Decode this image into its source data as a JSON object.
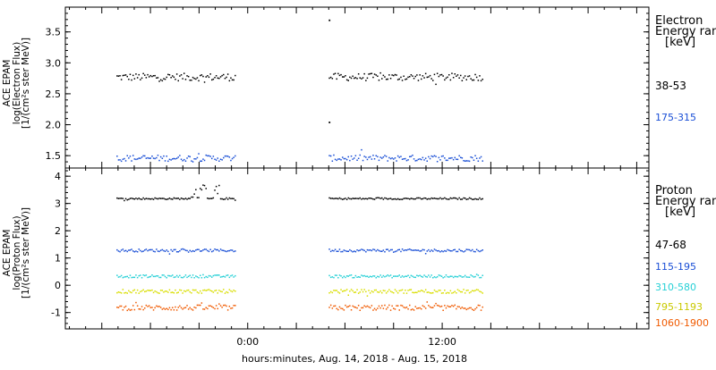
{
  "chart_data": [
    {
      "type": "scatter",
      "panel": "electron",
      "ylabel": [
        "ACE EPAM",
        "log(Electron Flux)",
        "[1/(cm²s ster MeV)]"
      ],
      "yticks": [
        "1.5",
        "2.0",
        "2.5",
        "3.0",
        "3.5"
      ],
      "ylim": [
        1.3,
        3.9
      ],
      "xlim": [
        -11.25,
        24.75
      ],
      "gaps_hours": [
        [
          -0.75,
          5.0
        ],
        [
          14.5,
          24.75
        ]
      ],
      "legend_title": [
        "Electron",
        "Energy ran",
        "[keV]"
      ],
      "series": [
        {
          "name": "38-53",
          "color": "#000000",
          "mean": 2.78,
          "spread": 0.06,
          "notes": "outliers near 05:00 at 3.7 and 2.05"
        },
        {
          "name": "175-315",
          "color": "#1a4fd6",
          "mean": 1.47,
          "spread": 0.05
        }
      ]
    },
    {
      "type": "scatter",
      "panel": "proton",
      "ylabel": [
        "ACE EPAM",
        "log(Proton Flux)",
        "[1/(cm²s ster MeV)]"
      ],
      "yticks": [
        "-1",
        "0",
        "1",
        "2",
        "3",
        "4"
      ],
      "ylim": [
        -1.6,
        4.3
      ],
      "xlim": [
        -11.25,
        24.75
      ],
      "gaps_hours": [
        [
          -0.75,
          5.0
        ],
        [
          14.5,
          24.75
        ]
      ],
      "legend_title": [
        "Proton",
        "Energy ran",
        "[keV]"
      ],
      "series": [
        {
          "name": "47-68",
          "color": "#000000",
          "mean": 3.2,
          "spread": 0.03,
          "notes": "bump to ~3.7 near -3:30 and -2:20"
        },
        {
          "name": "115-195",
          "color": "#1a4fd6",
          "mean": 1.3,
          "spread": 0.05
        },
        {
          "name": "310-580",
          "color": "#26d0d6",
          "mean": 0.35,
          "spread": 0.05
        },
        {
          "name": "795-1193",
          "color": "#d9de00",
          "mean": -0.2,
          "spread": 0.07
        },
        {
          "name": "1060-1900",
          "color": "#f05a00",
          "mean": -0.8,
          "spread": 0.1
        }
      ]
    }
  ],
  "xaxis": {
    "ticks": [
      {
        "hours": 0,
        "label": "0:00"
      },
      {
        "hours": 12,
        "label": "12:00"
      }
    ],
    "label": "hours:minutes, Aug. 14, 2018 - Aug. 15, 2018"
  }
}
